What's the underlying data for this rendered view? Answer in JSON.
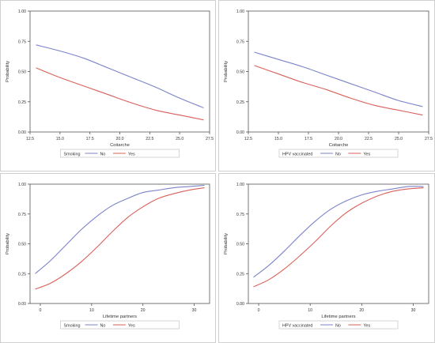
{
  "colors": {
    "no": "#7b83c9",
    "yes": "#d9605a",
    "axis": "#555555",
    "panel_border": "#cfcfcf"
  },
  "chart_data": [
    {
      "type": "line",
      "xlabel": "Coitarche",
      "ylabel": "Probability",
      "xlim": [
        12.5,
        27.5
      ],
      "ylim": [
        0,
        1
      ],
      "xticks": [
        "12.5",
        "15.0",
        "17.5",
        "20.0",
        "22.5",
        "25.0",
        "27.5"
      ],
      "xtick_values": [
        12.5,
        15.0,
        17.5,
        20.0,
        22.5,
        25.0,
        27.5
      ],
      "yticks": [
        "0.00",
        "0.25",
        "0.50",
        "0.75",
        "1.00"
      ],
      "ytick_values": [
        0,
        0.25,
        0.5,
        0.75,
        1.0
      ],
      "legend_title": "Smoking",
      "legend_position": "bottom",
      "grid": false,
      "series": [
        {
          "name": "No",
          "key": "no",
          "x": [
            13,
            15,
            17,
            19,
            21,
            23,
            25,
            27
          ],
          "y": [
            0.72,
            0.67,
            0.61,
            0.53,
            0.45,
            0.37,
            0.28,
            0.2
          ]
        },
        {
          "name": "Yes",
          "key": "yes",
          "x": [
            13,
            15,
            17,
            19,
            21,
            23,
            25,
            27
          ],
          "y": [
            0.53,
            0.45,
            0.38,
            0.31,
            0.24,
            0.18,
            0.14,
            0.1
          ]
        }
      ]
    },
    {
      "type": "line",
      "xlabel": "Coitarche",
      "ylabel": "Probability",
      "xlim": [
        12.5,
        27.5
      ],
      "ylim": [
        0,
        1
      ],
      "xticks": [
        "12.5",
        "15.0",
        "17.5",
        "20.0",
        "22.5",
        "25.0",
        "27.5"
      ],
      "xtick_values": [
        12.5,
        15.0,
        17.5,
        20.0,
        22.5,
        25.0,
        27.5
      ],
      "yticks": [
        "0.00",
        "0.25",
        "0.50",
        "0.75",
        "1.00"
      ],
      "ytick_values": [
        0,
        0.25,
        0.5,
        0.75,
        1.0
      ],
      "legend_title": "HPV vaccinated",
      "legend_position": "bottom",
      "grid": false,
      "series": [
        {
          "name": "No",
          "key": "no",
          "x": [
            13,
            15,
            17,
            19,
            21,
            23,
            25,
            27
          ],
          "y": [
            0.66,
            0.6,
            0.54,
            0.47,
            0.4,
            0.33,
            0.26,
            0.21
          ]
        },
        {
          "name": "Yes",
          "key": "yes",
          "x": [
            13,
            15,
            17,
            19,
            21,
            23,
            25,
            27
          ],
          "y": [
            0.55,
            0.48,
            0.41,
            0.35,
            0.28,
            0.22,
            0.18,
            0.14
          ]
        }
      ]
    },
    {
      "type": "line",
      "xlabel": "Lifetime partners",
      "ylabel": "Probability",
      "xlim": [
        -2,
        33
      ],
      "ylim": [
        0,
        1
      ],
      "xticks": [
        "0",
        "10",
        "20",
        "30"
      ],
      "xtick_values": [
        0,
        10,
        20,
        30
      ],
      "yticks": [
        "0.00",
        "0.25",
        "0.50",
        "0.75",
        "1.00"
      ],
      "ytick_values": [
        0,
        0.25,
        0.5,
        0.75,
        1.0
      ],
      "legend_title": "Smoking",
      "legend_position": "bottom",
      "grid": false,
      "series": [
        {
          "name": "No",
          "key": "no",
          "x": [
            -1,
            2,
            5,
            8,
            11,
            14,
            17,
            20,
            23,
            26,
            29,
            32
          ],
          "y": [
            0.25,
            0.36,
            0.49,
            0.62,
            0.73,
            0.82,
            0.88,
            0.93,
            0.95,
            0.97,
            0.98,
            0.99
          ]
        },
        {
          "name": "Yes",
          "key": "yes",
          "x": [
            -1,
            2,
            5,
            8,
            11,
            14,
            17,
            20,
            23,
            26,
            29,
            32
          ],
          "y": [
            0.12,
            0.17,
            0.25,
            0.35,
            0.47,
            0.6,
            0.72,
            0.81,
            0.88,
            0.92,
            0.95,
            0.97
          ]
        }
      ]
    },
    {
      "type": "line",
      "xlabel": "Lifetime partners",
      "ylabel": "Probability",
      "xlim": [
        -2,
        33
      ],
      "ylim": [
        0,
        1
      ],
      "xticks": [
        "0",
        "10",
        "20",
        "30"
      ],
      "xtick_values": [
        0,
        10,
        20,
        30
      ],
      "yticks": [
        "0.00",
        "0.25",
        "0.50",
        "0.75",
        "1.00"
      ],
      "ytick_values": [
        0,
        0.25,
        0.5,
        0.75,
        1.0
      ],
      "legend_title": "HPV vaccinated",
      "legend_position": "bottom",
      "grid": false,
      "series": [
        {
          "name": "No",
          "key": "no",
          "x": [
            -1,
            2,
            5,
            8,
            11,
            14,
            17,
            20,
            23,
            26,
            29,
            32
          ],
          "y": [
            0.22,
            0.32,
            0.44,
            0.57,
            0.69,
            0.79,
            0.86,
            0.91,
            0.94,
            0.96,
            0.98,
            0.98
          ]
        },
        {
          "name": "Yes",
          "key": "yes",
          "x": [
            -1,
            2,
            5,
            8,
            11,
            14,
            17,
            20,
            23,
            26,
            29,
            32
          ],
          "y": [
            0.14,
            0.2,
            0.29,
            0.4,
            0.52,
            0.65,
            0.76,
            0.84,
            0.9,
            0.94,
            0.96,
            0.97
          ]
        }
      ]
    }
  ]
}
